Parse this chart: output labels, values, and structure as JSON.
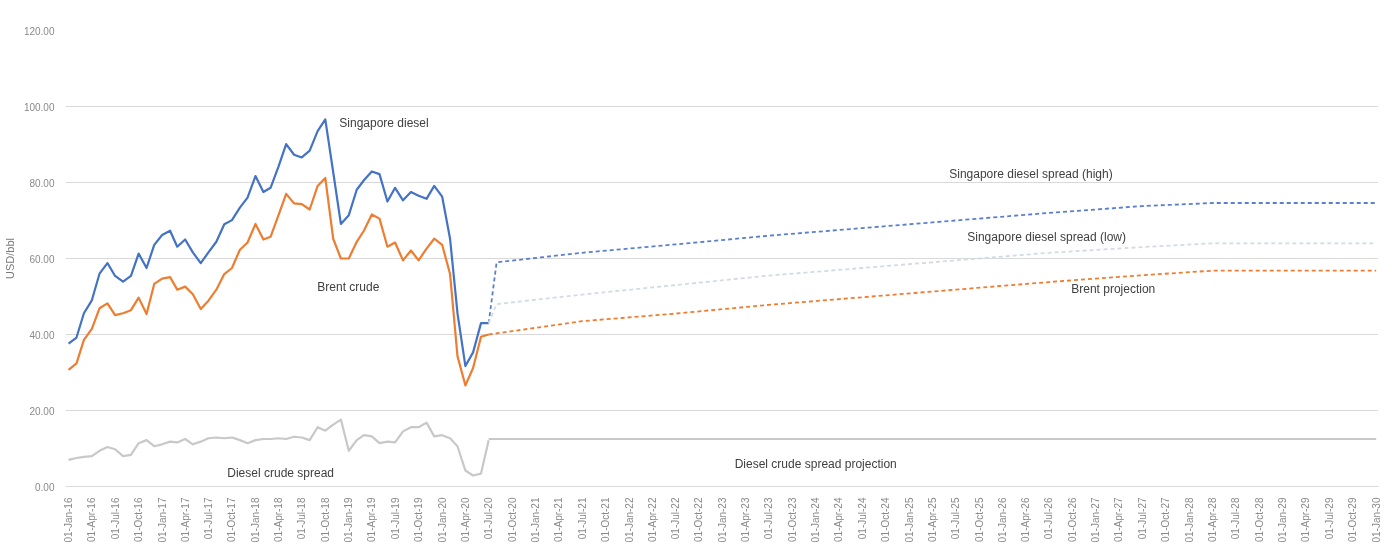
{
  "chart_data": {
    "type": "line",
    "ylabel": "USD/bbl",
    "ylim": [
      0,
      120
    ],
    "yticks": [
      {
        "value": 0,
        "label": "0.00"
      },
      {
        "value": 20,
        "label": "20.00"
      },
      {
        "value": 40,
        "label": "40.00"
      },
      {
        "value": 60,
        "label": "60.00"
      },
      {
        "value": 80,
        "label": "80.00"
      },
      {
        "value": 100,
        "label": "100.00"
      },
      {
        "value": 120,
        "label": "120.00"
      }
    ],
    "xlim": [
      "2015-12-20",
      "2030-01-10"
    ],
    "xticks": [
      {
        "value": "2016-01-01",
        "label": "01-Jan-16"
      },
      {
        "value": "2016-04-01",
        "label": "01-Apr-16"
      },
      {
        "value": "2016-07-01",
        "label": "01-Jul-16"
      },
      {
        "value": "2016-10-01",
        "label": "01-Oct-16"
      },
      {
        "value": "2017-01-01",
        "label": "01-Jan-17"
      },
      {
        "value": "2017-04-01",
        "label": "01-Apr-17"
      },
      {
        "value": "2017-07-01",
        "label": "01-Jul-17"
      },
      {
        "value": "2017-10-01",
        "label": "01-Oct-17"
      },
      {
        "value": "2018-01-01",
        "label": "01-Jan-18"
      },
      {
        "value": "2018-04-01",
        "label": "01-Apr-18"
      },
      {
        "value": "2018-07-01",
        "label": "01-Jul-18"
      },
      {
        "value": "2018-10-01",
        "label": "01-Oct-18"
      },
      {
        "value": "2019-01-01",
        "label": "01-Jan-19"
      },
      {
        "value": "2019-04-01",
        "label": "01-Apr-19"
      },
      {
        "value": "2019-07-01",
        "label": "01-Jul-19"
      },
      {
        "value": "2019-10-01",
        "label": "01-Oct-19"
      },
      {
        "value": "2020-01-01",
        "label": "01-Jan-20"
      },
      {
        "value": "2020-04-01",
        "label": "01-Apr-20"
      },
      {
        "value": "2020-07-01",
        "label": "01-Jul-20"
      },
      {
        "value": "2020-10-01",
        "label": "01-Oct-20"
      },
      {
        "value": "2021-01-01",
        "label": "01-Jan-21"
      },
      {
        "value": "2021-04-01",
        "label": "01-Apr-21"
      },
      {
        "value": "2021-07-01",
        "label": "01-Jul-21"
      },
      {
        "value": "2021-10-01",
        "label": "01-Oct-21"
      },
      {
        "value": "2022-01-01",
        "label": "01-Jan-22"
      },
      {
        "value": "2022-04-01",
        "label": "01-Apr-22"
      },
      {
        "value": "2022-07-01",
        "label": "01-Jul-22"
      },
      {
        "value": "2022-10-01",
        "label": "01-Oct-22"
      },
      {
        "value": "2023-01-01",
        "label": "01-Jan-23"
      },
      {
        "value": "2023-04-01",
        "label": "01-Apr-23"
      },
      {
        "value": "2023-07-01",
        "label": "01-Jul-23"
      },
      {
        "value": "2023-10-01",
        "label": "01-Oct-23"
      },
      {
        "value": "2024-01-01",
        "label": "01-Jan-24"
      },
      {
        "value": "2024-04-01",
        "label": "01-Apr-24"
      },
      {
        "value": "2024-07-01",
        "label": "01-Jul-24"
      },
      {
        "value": "2024-10-01",
        "label": "01-Oct-24"
      },
      {
        "value": "2025-01-01",
        "label": "01-Jan-25"
      },
      {
        "value": "2025-04-01",
        "label": "01-Apr-25"
      },
      {
        "value": "2025-07-01",
        "label": "01-Jul-25"
      },
      {
        "value": "2025-10-01",
        "label": "01-Oct-25"
      },
      {
        "value": "2026-01-01",
        "label": "01-Jan-26"
      },
      {
        "value": "2026-04-01",
        "label": "01-Apr-26"
      },
      {
        "value": "2026-07-01",
        "label": "01-Jul-26"
      },
      {
        "value": "2026-10-01",
        "label": "01-Oct-26"
      },
      {
        "value": "2027-01-01",
        "label": "01-Jan-27"
      },
      {
        "value": "2027-04-01",
        "label": "01-Apr-27"
      },
      {
        "value": "2027-07-01",
        "label": "01-Jul-27"
      },
      {
        "value": "2027-10-01",
        "label": "01-Oct-27"
      },
      {
        "value": "2028-01-01",
        "label": "01-Jan-28"
      },
      {
        "value": "2028-04-01",
        "label": "01-Apr-28"
      },
      {
        "value": "2028-07-01",
        "label": "01-Jul-28"
      },
      {
        "value": "2028-10-01",
        "label": "01-Oct-28"
      },
      {
        "value": "2029-01-01",
        "label": "01-Jan-29"
      },
      {
        "value": "2029-04-01",
        "label": "01-Apr-29"
      },
      {
        "value": "2029-07-01",
        "label": "01-Jul-29"
      },
      {
        "value": "2029-10-01",
        "label": "01-Oct-29"
      },
      {
        "value": "2030-01-01",
        "label": "01-Jan-30"
      }
    ],
    "grid": "y",
    "marker": "none",
    "x": [
      "2016-01",
      "2016-02",
      "2016-03",
      "2016-04",
      "2016-05",
      "2016-06",
      "2016-07",
      "2016-08",
      "2016-09",
      "2016-10",
      "2016-11",
      "2016-12",
      "2017-01",
      "2017-02",
      "2017-03",
      "2017-04",
      "2017-05",
      "2017-06",
      "2017-07",
      "2017-08",
      "2017-09",
      "2017-10",
      "2017-11",
      "2017-12",
      "2018-01",
      "2018-02",
      "2018-03",
      "2018-04",
      "2018-05",
      "2018-06",
      "2018-07",
      "2018-08",
      "2018-09",
      "2018-10",
      "2018-11",
      "2018-12",
      "2019-01",
      "2019-02",
      "2019-03",
      "2019-04",
      "2019-05",
      "2019-06",
      "2019-07",
      "2019-08",
      "2019-09",
      "2019-10",
      "2019-11",
      "2019-12",
      "2020-01",
      "2020-02",
      "2020-03",
      "2020-04",
      "2020-05",
      "2020-06",
      "2020-07"
    ],
    "series": [
      {
        "name": "Singapore diesel",
        "color": "#4472c4",
        "line_style": "solid",
        "values": [
          37.6,
          39.2,
          45.6,
          49,
          56,
          58.8,
          55.4,
          53.9,
          55.4,
          61.3,
          57.5,
          63.6,
          66.2,
          67.3,
          63.1,
          65,
          61.6,
          58.8,
          61.6,
          64.4,
          69,
          70.1,
          73.4,
          76,
          81.7,
          77.5,
          78.6,
          84.2,
          90.1,
          87.3,
          86.6,
          88.4,
          93.5,
          96.6,
          82.7,
          69.1,
          71.4,
          78.1,
          80.6,
          82.9,
          82.2,
          75,
          78.6,
          75.3,
          77.5,
          76.5,
          75.7,
          79.1,
          76.3,
          65.2,
          45.6,
          31.7,
          35.3,
          43,
          43
        ]
      },
      {
        "name": "Brent crude",
        "color": "#ed7d31",
        "line_style": "solid",
        "values": [
          30.7,
          32.4,
          38.6,
          41.5,
          46.9,
          48.2,
          45.1,
          45.6,
          46.4,
          49.7,
          45.4,
          53.3,
          54.7,
          55.1,
          51.8,
          52.6,
          50.6,
          46.7,
          48.9,
          51.8,
          55.9,
          57.5,
          62.3,
          64.2,
          69.1,
          65,
          65.7,
          71.4,
          77,
          74.5,
          74.3,
          72.9,
          79.1,
          81.2,
          65.2,
          60,
          60,
          64.4,
          67.3,
          71.6,
          70.5,
          63.1,
          64.2,
          59.5,
          62.1,
          59.5,
          62.6,
          65.2,
          63.6,
          55.9,
          34.3,
          26.6,
          31.2,
          39.4,
          40
        ]
      },
      {
        "name": "Diesel crude spread",
        "color": "#c8c8c8",
        "line_style": "solid",
        "values": [
          7,
          7.5,
          7.8,
          8,
          9.4,
          10.4,
          9.8,
          8,
          8.3,
          11.4,
          12.2,
          10.6,
          11.1,
          11.8,
          11.6,
          12.5,
          11.1,
          11.8,
          12.7,
          12.9,
          12.7,
          12.9,
          12.2,
          11.4,
          12.2,
          12.5,
          12.5,
          12.7,
          12.5,
          13.1,
          12.9,
          12.2,
          15.6,
          14.7,
          16.3,
          17.6,
          9.4,
          12.2,
          13.5,
          13.2,
          11.4,
          11.8,
          11.6,
          14.5,
          15.6,
          15.6,
          16.8,
          13.2,
          13.5,
          12.7,
          10.6,
          4.2,
          2.9,
          3.4,
          12.2
        ]
      },
      {
        "name": "Singapore diesel spread (high)",
        "color": "#5b7fd0",
        "line_style": "dashed",
        "x": [
          "2020-07",
          "2020-08",
          "2021-07",
          "2022-07",
          "2023-07",
          "2024-07",
          "2025-07",
          "2026-07",
          "2027-07",
          "2028-04",
          "2030-01"
        ],
        "values": [
          43,
          59,
          61.5,
          63.7,
          66,
          68,
          70,
          72,
          73.8,
          74.6,
          74.6
        ]
      },
      {
        "name": "Singapore diesel spread (low)",
        "color": "#d3dae6",
        "line_style": "dashed",
        "x": [
          "2020-07",
          "2020-08",
          "2021-07",
          "2022-07",
          "2023-07",
          "2024-07",
          "2025-07",
          "2026-07",
          "2027-07",
          "2028-04",
          "2030-01"
        ],
        "values": [
          43,
          48,
          50.5,
          53,
          55.5,
          57.5,
          59.5,
          61.5,
          63,
          64,
          64
        ]
      },
      {
        "name": "Brent projection",
        "color": "#ed7d31",
        "line_style": "dashed",
        "x": [
          "2020-07",
          "2021-07",
          "2022-07",
          "2023-07",
          "2024-07",
          "2025-07",
          "2026-07",
          "2027-07",
          "2028-04",
          "2030-01"
        ],
        "values": [
          40,
          43.5,
          45.5,
          47.8,
          49.8,
          51.8,
          53.8,
          55.6,
          56.8,
          56.8
        ]
      },
      {
        "name": "Diesel crude spread projection",
        "color": "#c8c8c8",
        "line_style": "solid",
        "x": [
          "2020-07",
          "2030-01"
        ],
        "values": [
          12.5,
          12.5
        ]
      }
    ]
  }
}
